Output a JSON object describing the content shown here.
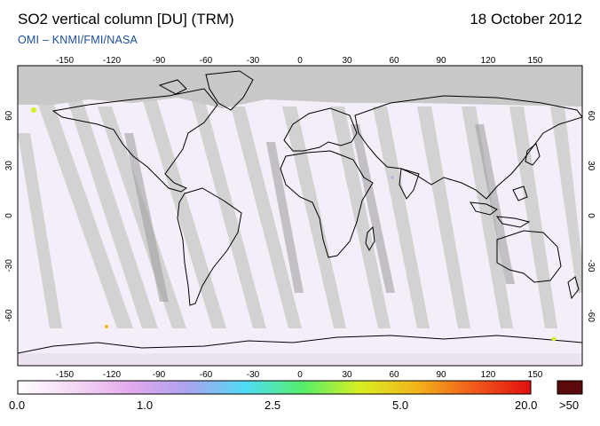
{
  "header": {
    "title": "SO2 vertical column [DU] (TRM)",
    "date": "18 October 2012",
    "credit": "OMI  –  KNMI/FMI/NASA"
  },
  "map": {
    "lon_ticks": [
      "-150",
      "-120",
      "-90",
      "-60",
      "-30",
      "0",
      "30",
      "60",
      "90",
      "120",
      "150"
    ],
    "lat_ticks_left": [
      "60",
      "30",
      "0",
      "-30",
      "-60"
    ],
    "lat_ticks_right": [
      "60",
      "30",
      "0",
      "-30",
      "-60"
    ],
    "no_data_color": "#c8c8c8",
    "swath_gap_color": "#cfcfcf",
    "background_color": "#f4eef8"
  },
  "colorbar": {
    "labels": [
      "0.0",
      "1.0",
      "2.5",
      "5.0",
      "20.0"
    ],
    "overflow_label": ">50",
    "colors": [
      "#ffffff",
      "#f4d8f4",
      "#e3a8ec",
      "#a9a3ef",
      "#4fdcf5",
      "#55ee6a",
      "#d7ee22",
      "#f2b41b",
      "#f05a1b",
      "#e00f0f"
    ],
    "overflow_color": "#5a0a0a"
  }
}
